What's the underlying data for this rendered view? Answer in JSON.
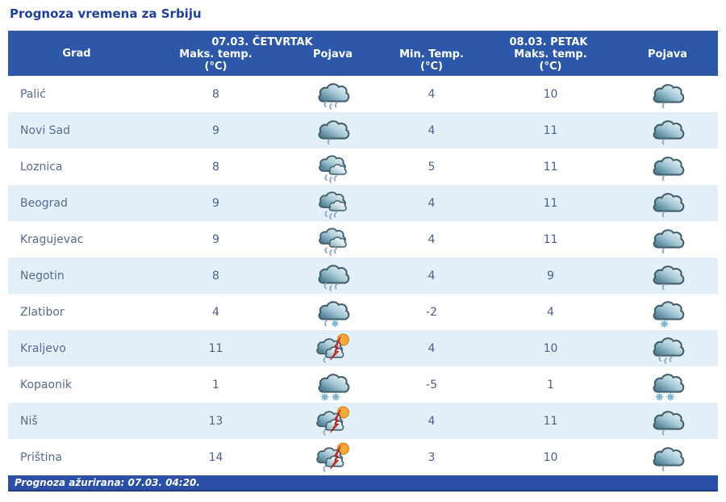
{
  "title": "Prognoza vremena za Srbiju",
  "colors": {
    "header_bg": "#2d57a8",
    "footer_bg": "#2b4fa6",
    "stripe": "#e3f0f9",
    "title": "#21409c",
    "text": "#5a6a8e",
    "num": "#4e608c",
    "cloud_dark": "#356a82",
    "sun": "#f7a83b",
    "bolt": "#d8403c"
  },
  "header": {
    "city_col": "Grad",
    "groups": [
      {
        "label": "07.03. ČETVRTAK",
        "cols": [
          {
            "l1": "Maks. temp.",
            "l2": "(°C)"
          },
          {
            "l1": "Pojava",
            "l2": ""
          }
        ]
      },
      {
        "label": "08.03. PETAK",
        "cols": [
          {
            "l1": "Min. Temp.",
            "l2": "(°C)"
          },
          {
            "l1": "Maks. temp.",
            "l2": "(°C)"
          },
          {
            "l1": "Pojava",
            "l2": ""
          }
        ]
      }
    ]
  },
  "rows": [
    {
      "city": "Palić",
      "day1_max": "8",
      "day1_icon": "cloud-rain",
      "day2_min": "4",
      "day2_max": "10",
      "day2_icon": "cloud-light-rain"
    },
    {
      "city": "Novi Sad",
      "day1_max": "9",
      "day1_icon": "cloud-light-rain",
      "day2_min": "4",
      "day2_max": "11",
      "day2_icon": "cloud-light-rain"
    },
    {
      "city": "Loznica",
      "day1_max": "8",
      "day1_icon": "clouds-rain",
      "day2_min": "5",
      "day2_max": "11",
      "day2_icon": "cloud-light-rain"
    },
    {
      "city": "Beograd",
      "day1_max": "9",
      "day1_icon": "clouds-rain",
      "day2_min": "4",
      "day2_max": "11",
      "day2_icon": "cloud-light-rain"
    },
    {
      "city": "Kragujevac",
      "day1_max": "9",
      "day1_icon": "clouds-rain",
      "day2_min": "4",
      "day2_max": "11",
      "day2_icon": "cloud-light-rain"
    },
    {
      "city": "Negotin",
      "day1_max": "8",
      "day1_icon": "cloud-rain",
      "day2_min": "4",
      "day2_max": "9",
      "day2_icon": "cloud-light-rain"
    },
    {
      "city": "Zlatibor",
      "day1_max": "4",
      "day1_icon": "cloud-sleet",
      "day2_min": "-2",
      "day2_max": "4",
      "day2_icon": "cloud-snow"
    },
    {
      "city": "Kraljevo",
      "day1_max": "11",
      "day1_icon": "sun-clouds-storm",
      "day2_min": "4",
      "day2_max": "10",
      "day2_icon": "cloud-rain"
    },
    {
      "city": "Kopaonik",
      "day1_max": "1",
      "day1_icon": "cloud-heavy-snow",
      "day2_min": "-5",
      "day2_max": "1",
      "day2_icon": "cloud-heavy-snow"
    },
    {
      "city": "Niš",
      "day1_max": "13",
      "day1_icon": "sun-clouds-storm",
      "day2_min": "4",
      "day2_max": "11",
      "day2_icon": "cloud-light-rain"
    },
    {
      "city": "Priština",
      "day1_max": "14",
      "day1_icon": "sun-clouds-storm",
      "day2_min": "3",
      "day2_max": "10",
      "day2_icon": "cloud-light-rain"
    }
  ],
  "footer": {
    "text": "Prognoza ažurirana:  07.03. 04:20."
  }
}
